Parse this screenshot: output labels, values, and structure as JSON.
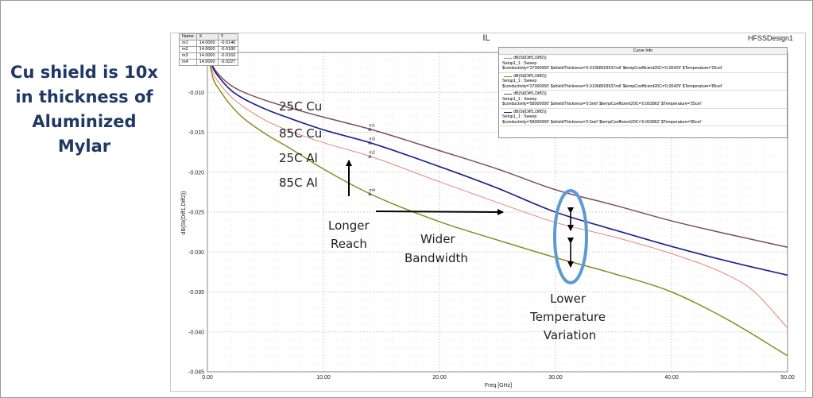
{
  "headline": [
    "Cu shield is 10x",
    "in thickness of",
    "Aluminized",
    "Mylar"
  ],
  "plot_title": "IL",
  "design_name": "HFSSDesign1",
  "colors": {
    "brand": "#1f3864",
    "cu25": "#7a4f5e",
    "cu85": "#20208c",
    "al25": "#e8837c",
    "al85": "#8c8a22",
    "ellipse": "#5b9bd5"
  },
  "marker_table": {
    "headers": [
      "Name",
      "X",
      "Y"
    ],
    "rows": [
      [
        "m1",
        "14.0000",
        "-0.0146"
      ],
      [
        "m2",
        "14.0000",
        "-0.0180"
      ],
      [
        "m3",
        "14.0000",
        "-0.0163"
      ],
      [
        "m4",
        "14.0000",
        "-0.0227"
      ]
    ]
  },
  "curve_info": {
    "title": "Curve Info",
    "entries": [
      {
        "trace": "dB(St(Diff1,Diff2))",
        "setup": "Setup1_1 : Sweep",
        "params": "$conductivity='37000000' $shieldThickness='0.01968503937mil' $tempCoefficient20C='0.00429' $Temperature='25cel'",
        "color": "#e8837c"
      },
      {
        "trace": "dB(St(Diff1,Diff2))",
        "setup": "Setup1_1 : Sweep",
        "params": "$conductivity='37000000' $shieldThickness='0.01968503937mil' $tempCoefficient20C='0.00429' $Temperature='85cel'",
        "color": "#8c8a22"
      },
      {
        "trace": "dB(St(Diff1,Diff2))",
        "setup": "Setup1_1 : Sweep",
        "params": "$conductivity='58000000' $shieldThickness='0.5mil' $tempCoefficient20C='0.003862' $Temperature='25cel'",
        "color": "#7a4f5e"
      },
      {
        "trace": "dB(St(Diff1,Diff2))",
        "setup": "Setup1_1 : Sweep",
        "params": "$conductivity='58000000' $shieldThickness='0.5mil' $tempCoefficient20C='0.003862' $Temperature='85cel'",
        "color": "#20208c"
      }
    ]
  },
  "annotations": {
    "cu25": "25C Cu",
    "cu85": "85C Cu",
    "al25": "25C Al",
    "al85": "85C Al",
    "longer_reach": [
      "Longer",
      "Reach"
    ],
    "wider_bandwidth": [
      "Wider",
      "Bandwidth"
    ],
    "lower_temp": [
      "Lower",
      "Temperature",
      "Variation"
    ]
  },
  "chart_data": {
    "type": "line",
    "xlabel": "Freq [GHz]",
    "ylabel": "dB(St(Diff1,Diff2))",
    "xlim": [
      0,
      50
    ],
    "ylim": [
      -0.045,
      -0.005
    ],
    "xticks": [
      "0.00",
      "10.00",
      "20.00",
      "30.00",
      "40.00",
      "50.00"
    ],
    "yticks": [
      "-0.010",
      "-0.015",
      "-0.020",
      "-0.025",
      "-0.030",
      "-0.035",
      "-0.040",
      "-0.045"
    ],
    "grid": true,
    "series": [
      {
        "key": "cu25",
        "x": [
          0,
          0.5,
          1,
          2,
          3,
          5,
          7,
          10,
          14,
          20,
          25,
          30,
          35,
          40,
          45,
          50
        ],
        "y": [
          -0.005,
          -0.0068,
          -0.0078,
          -0.0091,
          -0.0099,
          -0.011,
          -0.0119,
          -0.0131,
          -0.0146,
          -0.0173,
          -0.0196,
          -0.0222,
          -0.0241,
          -0.0261,
          -0.0278,
          -0.0294
        ]
      },
      {
        "key": "cu85",
        "x": [
          0,
          0.5,
          1,
          2,
          3,
          5,
          7,
          10,
          14,
          20,
          25,
          30,
          35,
          40,
          45,
          50
        ],
        "y": [
          -0.005,
          -0.007,
          -0.0081,
          -0.0097,
          -0.0107,
          -0.0121,
          -0.0132,
          -0.0147,
          -0.0163,
          -0.0193,
          -0.022,
          -0.025,
          -0.0272,
          -0.0293,
          -0.0312,
          -0.0329
        ]
      },
      {
        "key": "al25",
        "x": [
          0,
          0.5,
          1,
          2,
          3,
          5,
          7,
          10,
          14,
          20,
          25,
          30,
          35,
          40,
          45,
          47,
          50
        ],
        "y": [
          -0.005,
          -0.0076,
          -0.0088,
          -0.0105,
          -0.0117,
          -0.0135,
          -0.0148,
          -0.0163,
          -0.018,
          -0.0212,
          -0.0238,
          -0.0263,
          -0.0281,
          -0.0302,
          -0.033,
          -0.0348,
          -0.0395
        ]
      },
      {
        "key": "al85",
        "x": [
          0,
          0.5,
          1,
          2,
          3,
          5,
          7,
          10,
          14,
          20,
          25,
          30,
          35,
          40,
          45,
          50
        ],
        "y": [
          -0.005,
          -0.0083,
          -0.0096,
          -0.0116,
          -0.0131,
          -0.0152,
          -0.0169,
          -0.0196,
          -0.0227,
          -0.0262,
          -0.0285,
          -0.0307,
          -0.0327,
          -0.035,
          -0.0386,
          -0.043
        ]
      }
    ],
    "markers": [
      {
        "name": "m1",
        "x": 14,
        "y": -0.0146
      },
      {
        "name": "m2",
        "x": 14,
        "y": -0.018
      },
      {
        "name": "m3",
        "x": 14,
        "y": -0.0163
      },
      {
        "name": "m4",
        "x": 14,
        "y": -0.0227
      }
    ]
  }
}
